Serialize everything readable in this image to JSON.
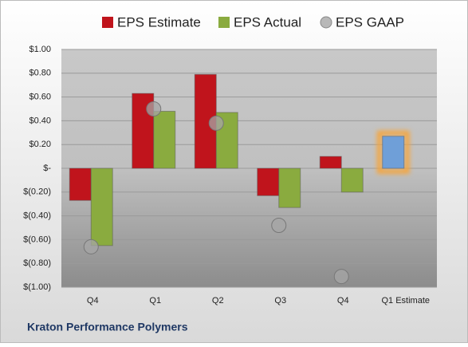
{
  "chart_data": {
    "type": "bar",
    "title": "Kraton Performance Polymers",
    "categories": [
      "Q4",
      "Q1",
      "Q2",
      "Q3",
      "Q4",
      "Q1 Estimate"
    ],
    "series": [
      {
        "name": "EPS Estimate",
        "type": "bar",
        "color": "#c0141c",
        "values": [
          -0.27,
          0.63,
          0.79,
          -0.23,
          0.1,
          0.27
        ],
        "point_colors": [
          null,
          null,
          null,
          null,
          null,
          "#6f9fd8"
        ]
      },
      {
        "name": "EPS Actual",
        "type": "bar",
        "color": "#8aab3f",
        "values": [
          -0.65,
          0.48,
          0.47,
          -0.33,
          -0.2,
          null
        ]
      },
      {
        "name": "EPS GAAP",
        "type": "scatter",
        "color": "#a6a6a6",
        "values": [
          -0.66,
          0.5,
          0.38,
          -0.48,
          -0.91,
          null
        ]
      }
    ],
    "ylim": [
      -1,
      1
    ],
    "yticks": [
      {
        "value": 1,
        "label": "$1.00"
      },
      {
        "value": 0.8,
        "label": "$0.80"
      },
      {
        "value": 0.6,
        "label": "$0.60"
      },
      {
        "value": 0.4,
        "label": "$0.40"
      },
      {
        "value": 0.2,
        "label": "$0.20"
      },
      {
        "value": 0,
        "label": "$-"
      },
      {
        "value": -0.2,
        "label": "$(0.20)"
      },
      {
        "value": -0.4,
        "label": "$(0.40)"
      },
      {
        "value": -0.6,
        "label": "$(0.60)"
      },
      {
        "value": -0.8,
        "label": "$(0.80)"
      },
      {
        "value": -1,
        "label": "$(1.00)"
      }
    ],
    "grid": true,
    "legend": "top"
  }
}
